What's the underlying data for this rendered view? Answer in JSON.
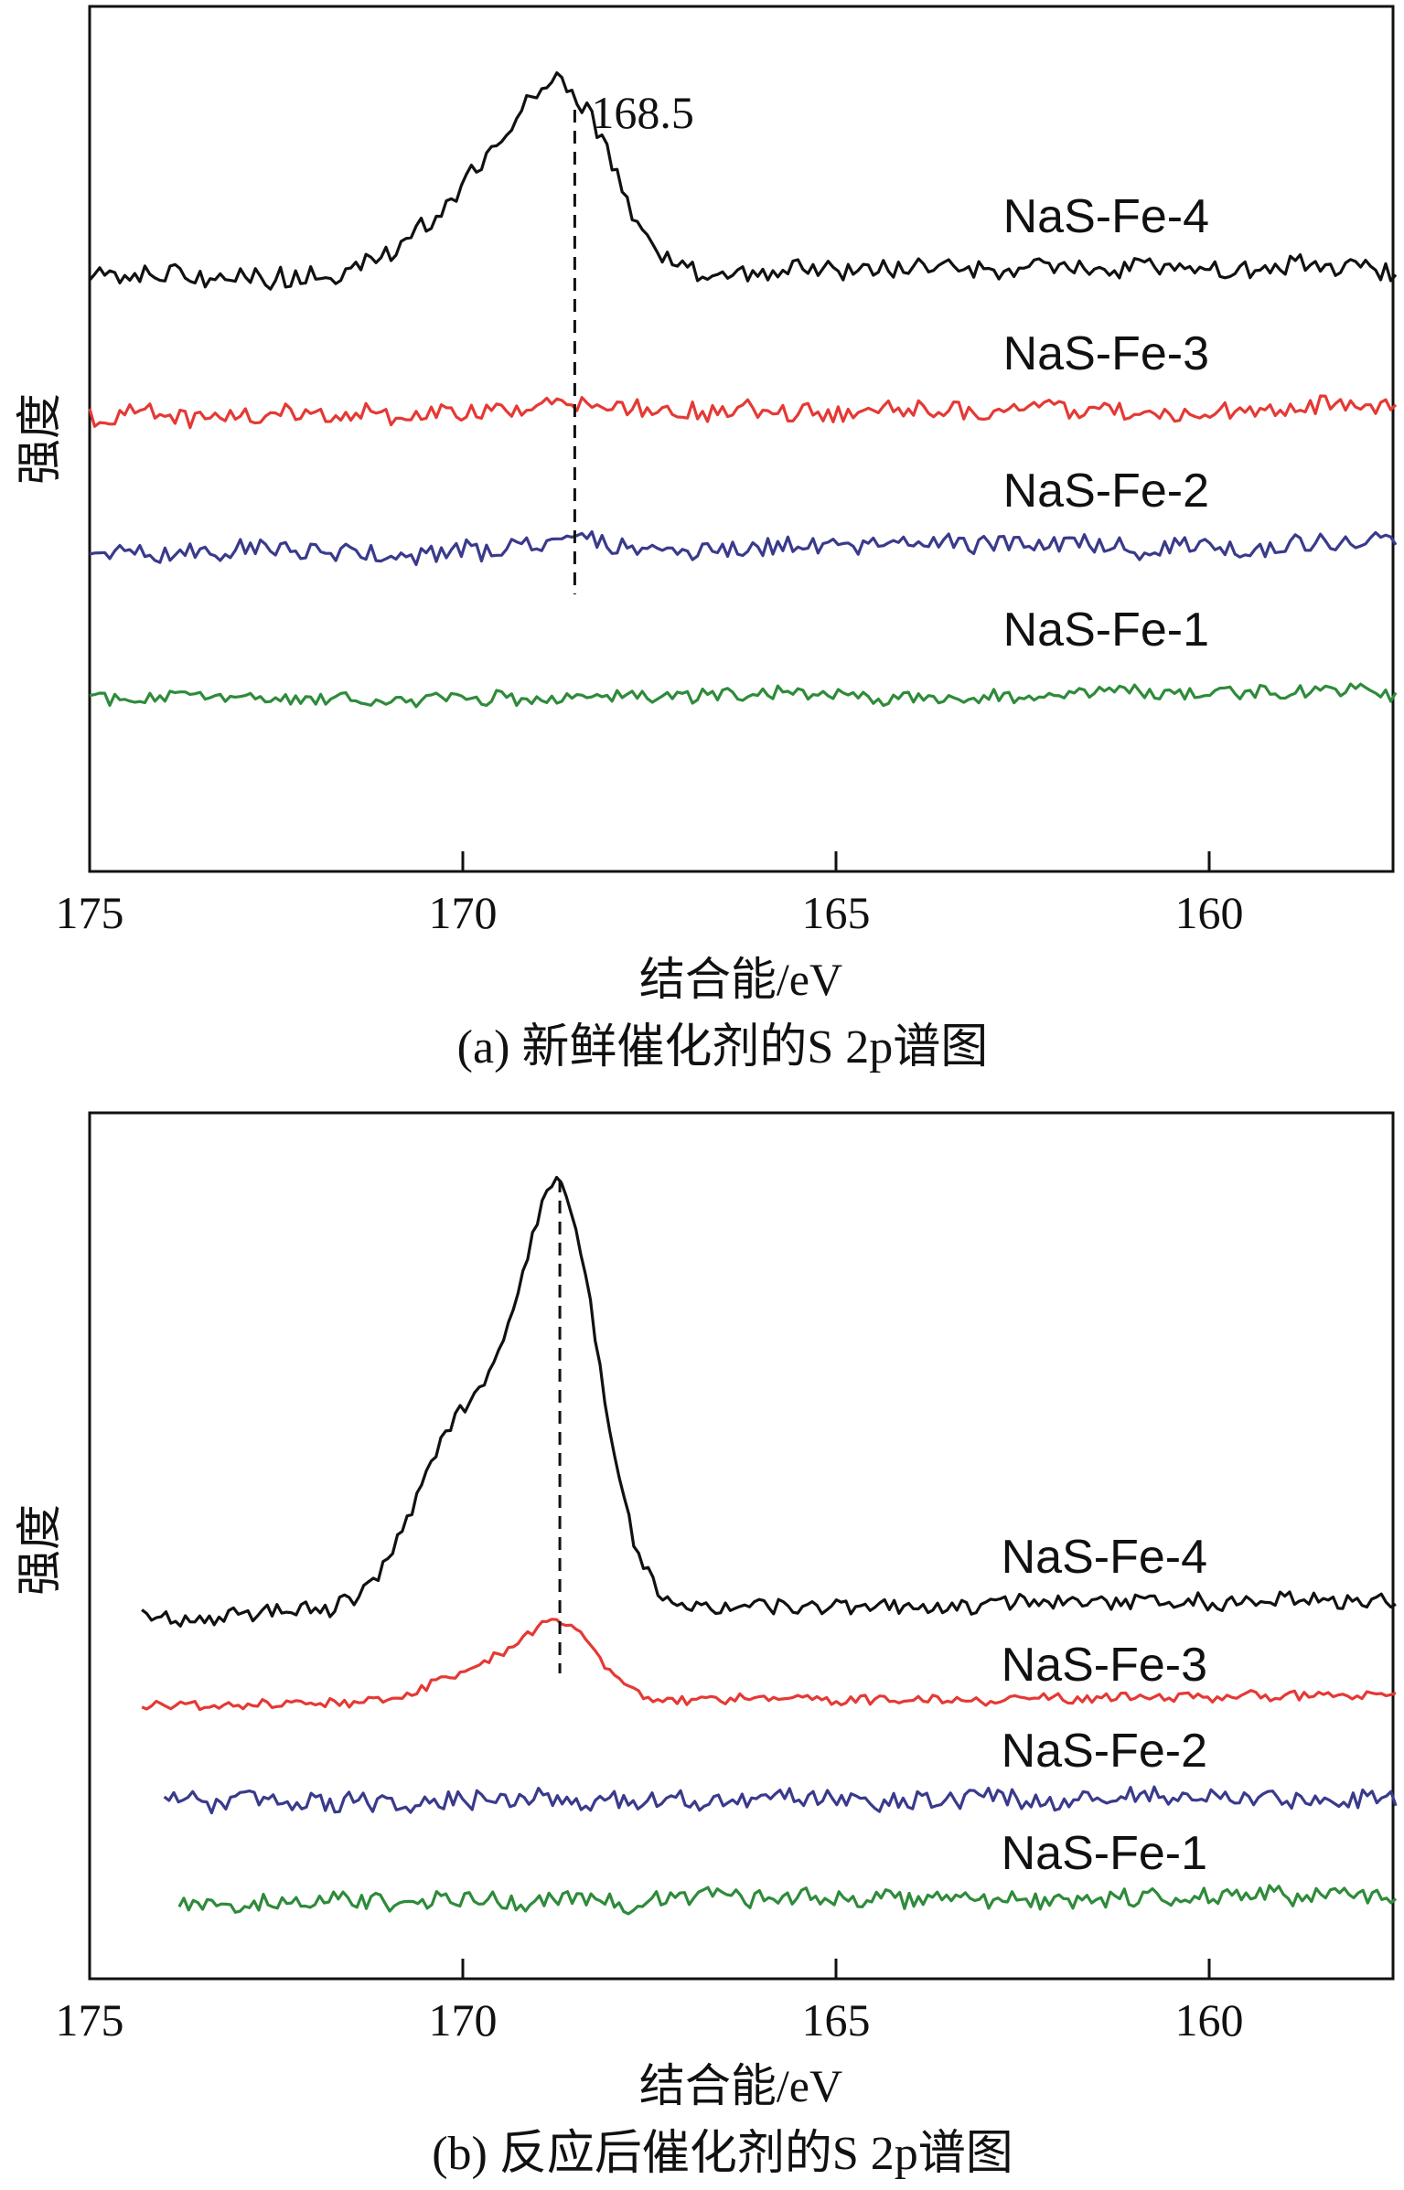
{
  "chart_data": [
    {
      "type": "line",
      "caption": "(a) 新鲜催化剂的S 2p谱图",
      "xlabel": "结合能/eV",
      "ylabel": "强度",
      "xlim": [
        175,
        157.5
      ],
      "xticks": [
        175,
        170,
        165,
        160
      ],
      "reference_line": {
        "x": 168.5,
        "label": "168.5"
      },
      "series": [
        {
          "name": "NaS-Fe-4",
          "color": "#111111",
          "baseline": 1.0,
          "peak": {
            "center": 168.6,
            "amplitude": 0.55,
            "width": 0.9,
            "shoulder_center": 169.8,
            "shoulder_amplitude": 0.25
          }
        },
        {
          "name": "NaS-Fe-3",
          "color": "#e53935",
          "baseline": 0.0,
          "peak": {
            "center": 168.5,
            "amplitude": 0.06,
            "width": 0.8
          }
        },
        {
          "name": "NaS-Fe-2",
          "color": "#3a3a8c",
          "baseline": 0.0,
          "peak": {
            "center": 168.5,
            "amplitude": 0.05,
            "width": 0.8
          }
        },
        {
          "name": "NaS-Fe-1",
          "color": "#2e8b3a",
          "baseline": 0.0,
          "peak": null
        }
      ]
    },
    {
      "type": "line",
      "caption": "(b) 反应后催化剂的S 2p谱图",
      "xlabel": "结合能/eV",
      "ylabel": "强度",
      "xlim": [
        175,
        157.5
      ],
      "xticks": [
        175,
        170,
        165,
        160
      ],
      "reference_line": {
        "x": 168.7,
        "label": ""
      },
      "series": [
        {
          "name": "NaS-Fe-4",
          "color": "#111111",
          "baseline": 0.0,
          "peak": {
            "center": 168.7,
            "amplitude": 1.0,
            "width": 0.75,
            "shoulder_center": 170.0,
            "shoulder_amplitude": 0.45
          }
        },
        {
          "name": "NaS-Fe-3",
          "color": "#e53935",
          "baseline": 0.0,
          "peak": {
            "center": 168.7,
            "amplitude": 0.28,
            "width": 0.7,
            "shoulder_center": 169.8,
            "shoulder_amplitude": 0.12
          }
        },
        {
          "name": "NaS-Fe-2",
          "color": "#3a3a8c",
          "baseline": 0.0,
          "peak": null
        },
        {
          "name": "NaS-Fe-1",
          "color": "#2e8b3a",
          "baseline": 0.0,
          "peak": null
        }
      ]
    }
  ]
}
